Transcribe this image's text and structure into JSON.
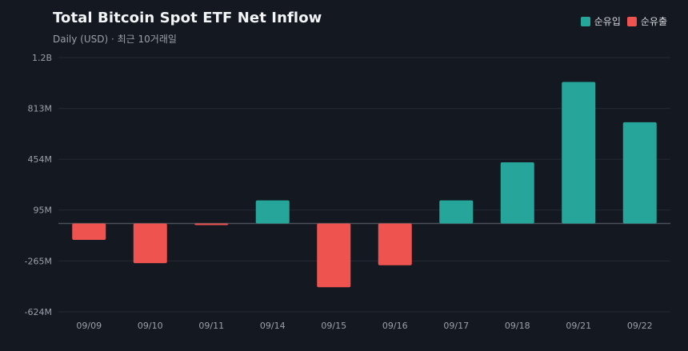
{
  "header": {
    "title": "Total Bitcoin Spot ETF Net Inflow",
    "subtitle": "Daily (USD) · 최근 10거래일"
  },
  "legend": [
    {
      "label": "순유입",
      "color": "#26a69a"
    },
    {
      "label": "순유출",
      "color": "#ef5350"
    }
  ],
  "chart_data": {
    "type": "bar",
    "title": "Total Bitcoin Spot ETF Net Inflow",
    "subtitle": "Daily (USD) · 최근 10거래일",
    "categories": [
      "09/09",
      "09/10",
      "09/11",
      "09/14",
      "09/15",
      "09/16",
      "09/17",
      "09/18",
      "09/21",
      "09/22"
    ],
    "series": [
      {
        "name": "순유입/순유출",
        "values": [
          -116,
          -280,
          -11,
          163,
          -450,
          -295,
          163,
          432,
          1000,
          715
        ]
      }
    ],
    "unit": "M USD",
    "ylim": [
      -624,
      1172
    ],
    "yticks": [
      {
        "value": 1172,
        "label": "1.2B"
      },
      {
        "value": 813,
        "label": "813M"
      },
      {
        "value": 454,
        "label": "454M"
      },
      {
        "value": 95,
        "label": "95M"
      },
      {
        "value": -265,
        "label": "-265M"
      },
      {
        "value": -624,
        "label": "-624M"
      }
    ],
    "colors": {
      "positive": "#26a69a",
      "negative": "#ef5350",
      "grid": "#252a34",
      "zero": "#4a4f5a"
    },
    "grid": true,
    "legend_position": "top-right"
  }
}
